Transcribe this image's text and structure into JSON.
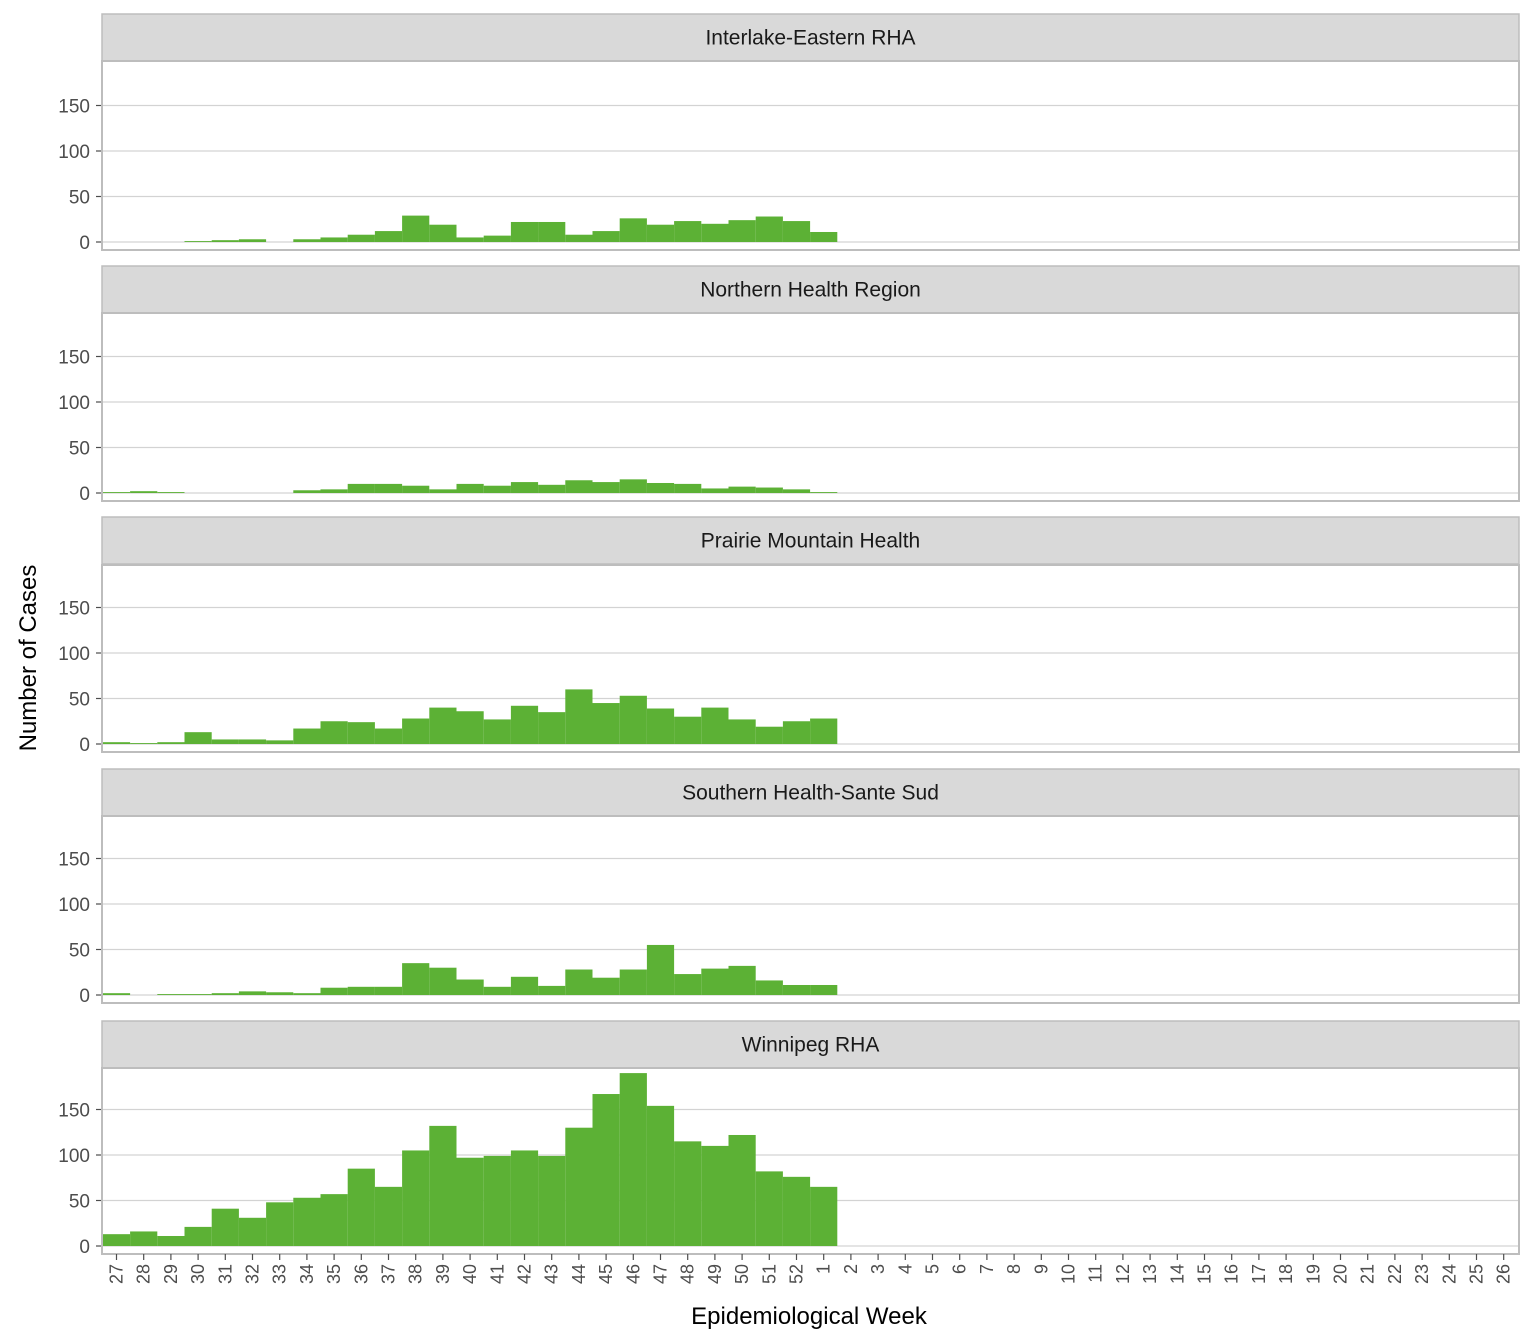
{
  "chart_data": {
    "type": "bar",
    "xlabel": "Epidemiological Week",
    "ylabel": "Number of Cases",
    "ylim": [
      0,
      195
    ],
    "yticks": [
      0,
      50,
      100,
      150
    ],
    "bar_color": "#5cb135",
    "categories": [
      "27",
      "28",
      "29",
      "30",
      "31",
      "32",
      "33",
      "34",
      "35",
      "36",
      "37",
      "38",
      "39",
      "40",
      "41",
      "42",
      "43",
      "44",
      "45",
      "46",
      "47",
      "48",
      "49",
      "50",
      "51",
      "52",
      "1",
      "2",
      "3",
      "4",
      "5",
      "6",
      "7",
      "8",
      "9",
      "10",
      "11",
      "12",
      "13",
      "14",
      "15",
      "16",
      "17",
      "18",
      "19",
      "20",
      "21",
      "22",
      "23",
      "24",
      "25",
      "26"
    ],
    "panels": [
      {
        "name": "Interlake-Eastern RHA",
        "values": [
          0,
          0,
          0,
          1,
          2,
          3,
          0,
          3,
          5,
          8,
          12,
          29,
          19,
          5,
          7,
          22,
          22,
          8,
          12,
          26,
          19,
          23,
          20,
          24,
          28,
          23,
          11
        ]
      },
      {
        "name": "Northern Health Region",
        "values": [
          1,
          2,
          1,
          0,
          0,
          0,
          0,
          3,
          4,
          10,
          10,
          8,
          4,
          10,
          8,
          12,
          9,
          14,
          12,
          15,
          11,
          10,
          5,
          7,
          6,
          4,
          1
        ]
      },
      {
        "name": "Prairie Mountain Health",
        "values": [
          2,
          1,
          2,
          13,
          5,
          5,
          4,
          17,
          25,
          24,
          17,
          28,
          40,
          36,
          27,
          42,
          35,
          60,
          45,
          53,
          39,
          30,
          40,
          27,
          19,
          25,
          28
        ]
      },
      {
        "name": "Southern Health-Sante Sud",
        "values": [
          2,
          0,
          1,
          1,
          2,
          4,
          3,
          2,
          8,
          9,
          9,
          35,
          30,
          17,
          9,
          20,
          10,
          28,
          19,
          28,
          55,
          23,
          29,
          32,
          16,
          11,
          11
        ]
      },
      {
        "name": "Winnipeg RHA",
        "values": [
          13,
          16,
          11,
          21,
          41,
          31,
          48,
          53,
          57,
          85,
          65,
          105,
          132,
          97,
          99,
          105,
          99,
          130,
          167,
          190,
          154,
          115,
          110,
          122,
          82,
          76,
          65
        ]
      }
    ]
  }
}
